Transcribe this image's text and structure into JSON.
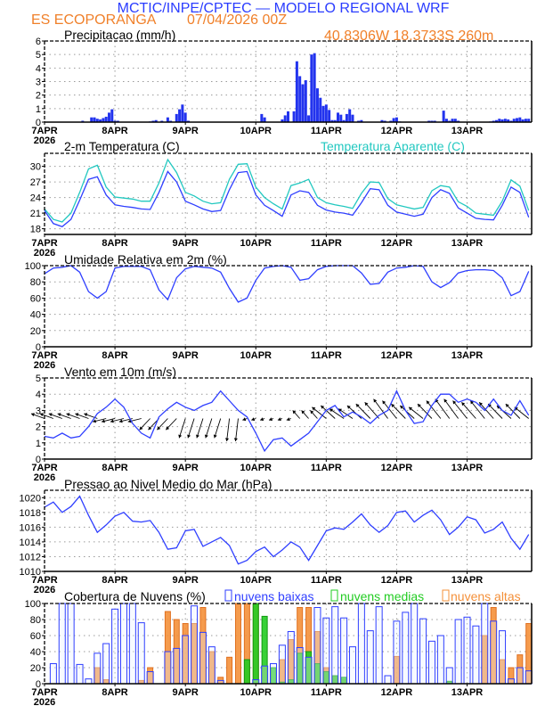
{
  "header": {
    "title": "MCTIC/INPE/CPTEC — MODELO REGIONAL WRF",
    "station": "ES ECOPORANGA",
    "datetime": "07/04/2026 00Z",
    "coords": "40.8306W 18.3733S 260m"
  },
  "x_axis": {
    "unit": "hours since 07APR2026 00Z",
    "labels": [
      "7APR",
      "8APR",
      "9APR",
      "10APR",
      "11APR",
      "12APR",
      "13APR"
    ],
    "year": "2026",
    "range": [
      0,
      166
    ]
  },
  "colors": {
    "title": "#2a3cff",
    "orange": "#f0802a",
    "blue_line": "#2f3fff",
    "cyan_line": "#22c8c0",
    "bar_blue": "#2233ee",
    "mid_green": "#22cc22",
    "high_orange": "#f4903a"
  },
  "cloud_legend": {
    "low": "nuvens baixas",
    "mid": "nuvens medias",
    "high": "nuvens altas"
  },
  "temp_legend": {
    "apparent": "Temperatura Aparente (C)"
  },
  "chart_data": [
    {
      "type": "bar",
      "title": "Precipitacao (mm/h)",
      "ylim": [
        0,
        6
      ],
      "yticks": [
        "0",
        "1",
        "2",
        "3",
        "4",
        "5",
        "6"
      ],
      "x": [
        13,
        16,
        17,
        18,
        19,
        20,
        21,
        22,
        23,
        24,
        25,
        36,
        37,
        38,
        40,
        42,
        43,
        45,
        46,
        47,
        48,
        49,
        74,
        75,
        81,
        82,
        83,
        85,
        86,
        87,
        88,
        89,
        90,
        91,
        92,
        93,
        94,
        95,
        96,
        97,
        98,
        99,
        100,
        101,
        102,
        103,
        104,
        105,
        107,
        108,
        115,
        116,
        118,
        119,
        120,
        121,
        131,
        132,
        133,
        136,
        137,
        138,
        139,
        140,
        141,
        152,
        153,
        154,
        155,
        156,
        157,
        158,
        159,
        160,
        161,
        162,
        163,
        164,
        165
      ],
      "values": [
        0.1,
        0.35,
        0.35,
        0.25,
        0.2,
        0.3,
        0.4,
        0.7,
        0.95,
        0.1,
        0.1,
        0.05,
        0.1,
        0.15,
        0.1,
        0.35,
        0.1,
        0.6,
        0.95,
        1.3,
        0.7,
        0.1,
        0.6,
        0.35,
        0.2,
        0.5,
        0.8,
        0.8,
        4.5,
        3.4,
        2.8,
        3.1,
        0.5,
        5.0,
        5.1,
        2.5,
        1.8,
        1.2,
        1.3,
        0.9,
        0.15,
        0.15,
        0.7,
        0.55,
        0.15,
        0.6,
        0.95,
        0.55,
        0.1,
        0.15,
        0.15,
        0.1,
        0.1,
        0.3,
        0.35,
        0.05,
        0.1,
        0.1,
        0.1,
        0.85,
        0.25,
        0.1,
        0.25,
        0.25,
        0.1,
        0.05,
        0.1,
        0.15,
        0.25,
        0.2,
        0.25,
        0.2,
        0.1,
        0.25,
        0.3,
        0.35,
        0.2,
        0.25,
        0.25
      ]
    },
    {
      "type": "line",
      "title": "2-m Temperatura (C)",
      "ylim": [
        16.9,
        32.5
      ],
      "yticks": [
        "18",
        "21",
        "24",
        "27",
        "30"
      ],
      "x_start": 0,
      "x_step": 3,
      "series": [
        {
          "name": "2-m Temperatura (C)",
          "values": [
            21.5,
            19.0,
            18.4,
            19.8,
            23.5,
            27.5,
            28.0,
            24.5,
            22.6,
            22.3,
            22.1,
            21.8,
            21.7,
            25.0,
            29.0,
            27.0,
            23.3,
            22.6,
            21.8,
            21.3,
            21.5,
            25.5,
            28.8,
            29.0,
            24.5,
            22.5,
            21.5,
            20.4,
            24.5,
            25.3,
            25.0,
            22.5,
            21.6,
            21.2,
            21.0,
            20.6,
            23.0,
            25.7,
            25.5,
            22.5,
            21.2,
            20.8,
            20.4,
            20.8,
            24.0,
            25.5,
            24.8,
            22.0,
            21.0,
            20.0,
            19.8,
            19.7,
            22.5,
            26.0,
            25.0,
            20.2
          ]
        },
        {
          "name": "Temperatura Aparente (C)",
          "values": [
            21.8,
            19.8,
            19.3,
            21.0,
            25.0,
            29.5,
            30.2,
            26.0,
            24.1,
            23.9,
            23.7,
            23.3,
            23.3,
            26.8,
            31.3,
            28.8,
            25.0,
            24.3,
            23.3,
            22.8,
            23.0,
            27.5,
            30.4,
            30.5,
            26.0,
            24.0,
            22.8,
            21.8,
            26.3,
            26.8,
            27.5,
            24.0,
            23.0,
            22.6,
            22.3,
            21.9,
            24.8,
            27.0,
            26.9,
            23.8,
            22.6,
            22.2,
            21.8,
            22.1,
            25.3,
            26.3,
            26.0,
            23.2,
            22.3,
            21.0,
            20.8,
            20.6,
            23.3,
            27.4,
            26.2,
            21.5
          ]
        }
      ]
    },
    {
      "type": "line",
      "title": "Umidade Relativa em 2m (%)",
      "ylim": [
        0,
        100
      ],
      "yticks": [
        "0",
        "20",
        "40",
        "60",
        "80",
        "100"
      ],
      "x_start": 0,
      "x_step": 3,
      "values": [
        90,
        97,
        98,
        100,
        92,
        68,
        60,
        68,
        97,
        99,
        99,
        99,
        95,
        70,
        58,
        85,
        96,
        99,
        98,
        97,
        92,
        72,
        55,
        60,
        82,
        97,
        99,
        100,
        98,
        82,
        84,
        95,
        99,
        100,
        100,
        100,
        91,
        77,
        78,
        92,
        97,
        98,
        100,
        99,
        80,
        73,
        79,
        91,
        94,
        95,
        95,
        94,
        85,
        63,
        68,
        93
      ]
    },
    {
      "type": "line",
      "title": "Vento em 10m (m/s)",
      "ylim": [
        0,
        5
      ],
      "yticks": [
        "0",
        "1",
        "2",
        "3",
        "4",
        "5"
      ],
      "x_start": 0,
      "x_step": 3,
      "values": [
        1.4,
        1.3,
        1.6,
        1.3,
        1.4,
        2.0,
        2.8,
        3.2,
        3.7,
        3.2,
        2.2,
        1.6,
        1.3,
        2.6,
        3.1,
        3.5,
        3.2,
        3.0,
        3.3,
        3.5,
        4.2,
        3.6,
        3.0,
        2.6,
        1.6,
        0.5,
        1.2,
        1.3,
        0.8,
        1.2,
        1.6,
        2.3,
        3.0,
        3.3,
        2.6,
        2.9,
        2.6,
        2.2,
        2.7,
        3.0,
        4.2,
        3.0,
        2.2,
        2.3,
        3.3,
        4.0,
        4.0,
        3.5,
        3.7,
        3.5,
        3.0,
        3.7,
        3.0,
        2.7,
        3.6,
        2.7
      ],
      "vectors": {
        "u": [
          -1.5,
          -1.5,
          -1.5,
          -1.5,
          -1.5,
          -1.5,
          -1.5,
          -1.5,
          -1.5,
          -1.5,
          -1.5,
          -1.5,
          -1.2,
          -1.2,
          -1.2,
          -1.2,
          -0.7,
          -0.7,
          -0.7,
          -0.7,
          -0.7,
          -0.3,
          -0.3,
          -0.5,
          -0.5,
          -0.5,
          -0.5,
          -0.5,
          -0.5,
          -0.8,
          -0.8,
          -0.8,
          -1.6,
          -1.6,
          -1.6,
          -1.6,
          -1.6,
          -1.6,
          -1.6,
          -1.6,
          -1.6,
          -1.6,
          -1.6,
          -1.6,
          -1.6,
          -1.6,
          -1.6,
          -1.6,
          -1.6,
          -1.6,
          -1.6,
          -1.6,
          -1.6,
          -1.6,
          -1.6,
          -1.6
        ],
        "v": [
          0.3,
          0.3,
          0.3,
          0.3,
          0.3,
          0.3,
          0.3,
          -0.2,
          -0.2,
          -0.2,
          -0.2,
          -0.2,
          -0.7,
          -0.7,
          -0.7,
          -0.7,
          -1.2,
          -1.2,
          -1.2,
          -1.2,
          -1.2,
          -1.4,
          -1.4,
          -0.1,
          -0.1,
          -0.1,
          -0.1,
          -0.1,
          -0.1,
          0.5,
          0.5,
          0.5,
          0.7,
          0.8,
          0.6,
          0.6,
          0.8,
          0.9,
          1.0,
          1.2,
          1.1,
          0.9,
          0.8,
          0.7,
          0.9,
          1.1,
          1.2,
          1.2,
          1.1,
          1.0,
          1.1,
          1.0,
          0.9,
          0.8,
          0.9,
          0.7
        ],
        "baseline": 2.5
      }
    },
    {
      "type": "line",
      "title": "Pressao ao Nivel Medio do Mar (hPa)",
      "ylim": [
        1010,
        1021
      ],
      "yticks": [
        "1010",
        "1012",
        "1014",
        "1016",
        "1018",
        "1020"
      ],
      "x_start": 0,
      "x_step": 3,
      "values": [
        1018.7,
        1019.4,
        1018.0,
        1018.8,
        1020.2,
        1017.6,
        1015.3,
        1016.3,
        1017.5,
        1018.0,
        1016.8,
        1016.7,
        1016.9,
        1015.3,
        1013.0,
        1013.2,
        1015.5,
        1015.7,
        1013.4,
        1014.0,
        1014.6,
        1013.5,
        1011.0,
        1011.5,
        1012.7,
        1013.3,
        1012.0,
        1012.9,
        1014.0,
        1013.3,
        1011.5,
        1013.5,
        1015.5,
        1015.9,
        1015.7,
        1016.7,
        1017.8,
        1016.3,
        1015.3,
        1016.2,
        1018.0,
        1018.2,
        1016.7,
        1017.6,
        1018.3,
        1017.0,
        1015.0,
        1016.0,
        1017.4,
        1017.0,
        1015.2,
        1015.7,
        1016.7,
        1014.5,
        1013.0,
        1015.0
      ]
    },
    {
      "type": "bar",
      "title": "Cobertura de Nuvens (%)",
      "ylim": [
        0,
        100
      ],
      "yticks": [
        "0",
        "20",
        "40",
        "60",
        "80",
        "100"
      ],
      "x_start": 0,
      "x_step": 3,
      "series": [
        {
          "name": "nuvens altas",
          "values": [
            0,
            0,
            0,
            0,
            0,
            0,
            20,
            5,
            0,
            0,
            0,
            4,
            20,
            0,
            90,
            80,
            75,
            75,
            95,
            40,
            8,
            33,
            100,
            100,
            100,
            20,
            0,
            30,
            55,
            95,
            95,
            65,
            20,
            10,
            5,
            0,
            0,
            0,
            0,
            0,
            34,
            0,
            0,
            0,
            0,
            0,
            0,
            0,
            0,
            0,
            60,
            95,
            30,
            20,
            36,
            75
          ]
        },
        {
          "name": "nuvens medias",
          "values": [
            0,
            0,
            0,
            0,
            0,
            0,
            0,
            0,
            0,
            0,
            0,
            0,
            0,
            0,
            0,
            0,
            0,
            0,
            0,
            0,
            0,
            0,
            0,
            30,
            100,
            84,
            20,
            2,
            5,
            38,
            40,
            25,
            15,
            10,
            8,
            0,
            0,
            0,
            0,
            0,
            0,
            0,
            0,
            0,
            0,
            0,
            3,
            0,
            0,
            0,
            0,
            0,
            0,
            0,
            0,
            0
          ]
        },
        {
          "name": "nuvens baixas",
          "values": [
            0,
            25,
            100,
            100,
            24,
            6,
            38,
            50,
            93,
            100,
            100,
            76,
            15,
            0,
            40,
            44,
            60,
            97,
            64,
            46,
            4,
            0,
            0,
            0,
            5,
            22,
            25,
            48,
            65,
            45,
            33,
            95,
            82,
            96,
            82,
            46,
            100,
            66,
            96,
            10,
            78,
            89,
            100,
            81,
            53,
            60,
            20,
            80,
            83,
            72,
            100,
            78,
            66,
            6,
            20,
            16
          ]
        }
      ]
    }
  ]
}
